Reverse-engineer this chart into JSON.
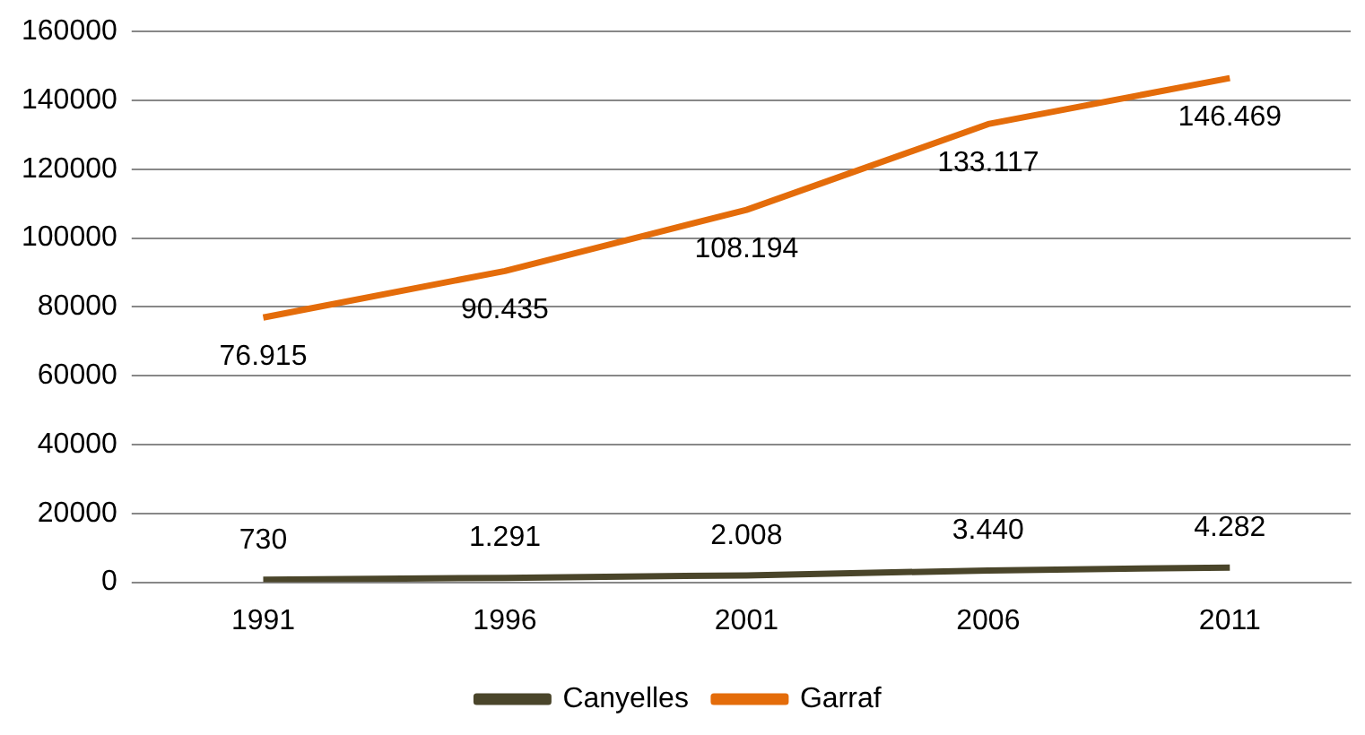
{
  "chart_data": {
    "type": "line",
    "categories": [
      "1991",
      "1996",
      "2001",
      "2006",
      "2011"
    ],
    "series": [
      {
        "name": "Canyelles",
        "color": "#4a452a",
        "values": [
          730,
          1291,
          2008,
          3440,
          4282
        ],
        "value_labels": [
          "730",
          "1.291",
          "2.008",
          "3.440",
          "4.282"
        ]
      },
      {
        "name": "Garraf",
        "color": "#e46c0a",
        "values": [
          76915,
          90435,
          108194,
          133117,
          146469
        ],
        "value_labels": [
          "76.915",
          "90.435",
          "108.194",
          "133.117",
          "146.469"
        ]
      }
    ],
    "ylim": [
      0,
      160000
    ],
    "yticks": [
      0,
      20000,
      40000,
      60000,
      80000,
      100000,
      120000,
      140000,
      160000
    ],
    "grid": "y",
    "legend": "bottom",
    "marker": "none",
    "line_style": "solid"
  }
}
